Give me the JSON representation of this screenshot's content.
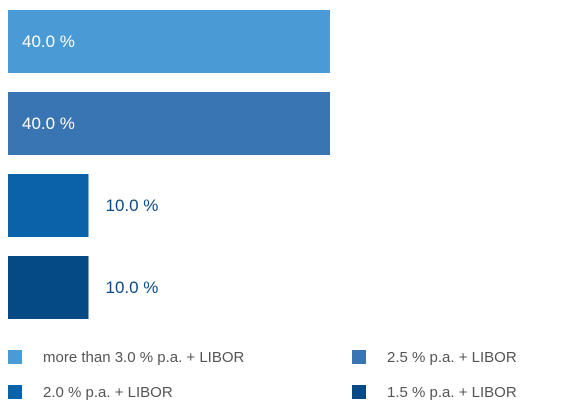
{
  "chart_data": {
    "type": "bar",
    "orientation": "horizontal",
    "series": [
      {
        "name": "more than 3.0 % p.a. + LIBOR",
        "color": "#4a9ad6",
        "values": [
          40
        ],
        "value_labels": [
          "40.0 %"
        ]
      },
      {
        "name": "2.5 % p.a. + LIBOR",
        "color": "#3a75b3",
        "values": [
          40
        ],
        "value_labels": [
          "40.0 %"
        ]
      },
      {
        "name": "2.0 % p.a. + LIBOR",
        "color": "#0a63a9",
        "values": [
          10
        ],
        "value_labels": [
          "10.0 %"
        ]
      },
      {
        "name": "1.5 % p.a. + LIBOR",
        "color": "#064a85",
        "values": [
          10
        ],
        "value_labels": [
          "10.0 %"
        ]
      }
    ]
  }
}
